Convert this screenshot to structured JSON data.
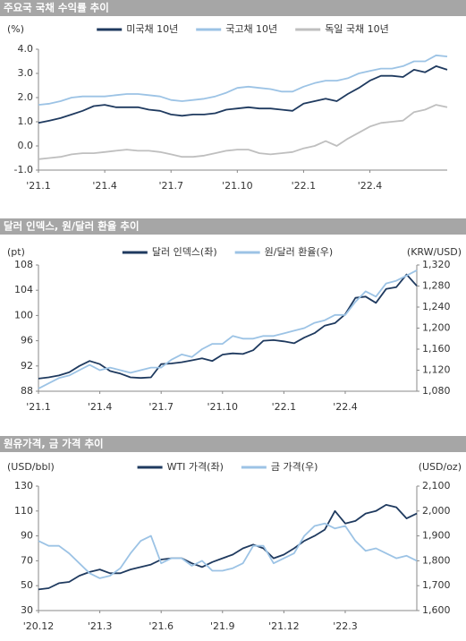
{
  "chart_data": [
    {
      "type": "line",
      "title": "주요국 국채 수익률 추이",
      "y_label": "(%)",
      "categories": [
        "'21.1",
        null,
        null,
        null,
        null,
        null,
        "'21.4",
        null,
        null,
        null,
        null,
        null,
        "'21.7",
        null,
        null,
        null,
        null,
        null,
        "'21.10",
        null,
        null,
        null,
        null,
        null,
        "'22.1",
        null,
        null,
        null,
        null,
        null,
        "'22.4",
        null,
        null,
        null,
        null,
        null,
        null,
        null
      ],
      "ylim": [
        -1,
        4
      ],
      "yticks": [
        {
          "value": -1,
          "label": "-1.0"
        },
        {
          "value": 0,
          "label": "0.0"
        },
        {
          "value": 1,
          "label": "1.0"
        },
        {
          "value": 2,
          "label": "2.0"
        },
        {
          "value": 3,
          "label": "3.0"
        },
        {
          "value": 4,
          "label": "4.0"
        }
      ],
      "series": [
        {
          "name": "미국채 10년",
          "color": "#1f3a5f",
          "values": [
            0.95,
            1.05,
            1.15,
            1.3,
            1.45,
            1.65,
            1.7,
            1.6,
            1.6,
            1.6,
            1.5,
            1.45,
            1.3,
            1.25,
            1.3,
            1.3,
            1.35,
            1.5,
            1.55,
            1.6,
            1.55,
            1.55,
            1.5,
            1.45,
            1.75,
            1.85,
            1.95,
            1.85,
            2.15,
            2.4,
            2.7,
            2.9,
            2.9,
            2.85,
            3.15,
            3.05,
            3.3,
            3.15
          ]
        },
        {
          "name": "국고채 10년",
          "color": "#9cc3e5",
          "values": [
            1.7,
            1.75,
            1.85,
            2.0,
            2.05,
            2.05,
            2.05,
            2.1,
            2.15,
            2.15,
            2.1,
            2.05,
            1.9,
            1.85,
            1.9,
            1.95,
            2.05,
            2.2,
            2.4,
            2.45,
            2.4,
            2.35,
            2.25,
            2.25,
            2.45,
            2.6,
            2.7,
            2.7,
            2.8,
            3.0,
            3.1,
            3.2,
            3.2,
            3.3,
            3.5,
            3.5,
            3.75,
            3.7
          ]
        },
        {
          "name": "독일 국채 10년",
          "color": "#bfbfbf",
          "values": [
            -0.55,
            -0.5,
            -0.45,
            -0.35,
            -0.3,
            -0.3,
            -0.25,
            -0.2,
            -0.15,
            -0.2,
            -0.2,
            -0.25,
            -0.35,
            -0.45,
            -0.45,
            -0.4,
            -0.3,
            -0.2,
            -0.15,
            -0.15,
            -0.3,
            -0.35,
            -0.3,
            -0.25,
            -0.1,
            0.0,
            0.2,
            0.0,
            0.3,
            0.55,
            0.8,
            0.95,
            1.0,
            1.05,
            1.4,
            1.5,
            1.7,
            1.6
          ]
        }
      ]
    },
    {
      "type": "line",
      "title": "달러 인덱스, 원/달러 환율 추이",
      "y_label": "(pt)",
      "y2_label": "(KRW/USD)",
      "categories": [
        "'21.1",
        null,
        null,
        null,
        null,
        null,
        "'21.4",
        null,
        null,
        null,
        null,
        null,
        "'21.7",
        null,
        null,
        null,
        null,
        null,
        "'21.10",
        null,
        null,
        null,
        null,
        null,
        "'22.1",
        null,
        null,
        null,
        null,
        null,
        "'22.4",
        null,
        null,
        null,
        null,
        null,
        null,
        null
      ],
      "ylim": [
        88,
        108
      ],
      "yticks": [
        88,
        92,
        96,
        100,
        104,
        108
      ],
      "y2lim": [
        1080,
        1320
      ],
      "y2ticks": [
        {
          "value": 1080,
          "label": "1,080"
        },
        {
          "value": 1120,
          "label": "1,120"
        },
        {
          "value": 1160,
          "label": "1,160"
        },
        {
          "value": 1200,
          "label": "1,200"
        },
        {
          "value": 1240,
          "label": "1,240"
        },
        {
          "value": 1280,
          "label": "1,280"
        },
        {
          "value": 1320,
          "label": "1,320"
        }
      ],
      "series": [
        {
          "name": "달러 인덱스(좌)",
          "color": "#1f3a5f",
          "values": [
            90,
            90.2,
            90.5,
            91,
            92,
            92.8,
            92.3,
            91.2,
            90.8,
            90.2,
            90.1,
            90.2,
            92.3,
            92.4,
            92.6,
            92.9,
            93.2,
            92.8,
            93.8,
            94.0,
            93.9,
            94.5,
            96.0,
            96.1,
            95.9,
            95.6,
            96.5,
            97.2,
            98.4,
            98.8,
            100.2,
            102.8,
            103.0,
            102.0,
            104.2,
            104.5,
            106.5,
            104.7
          ]
        },
        {
          "name": "원/달러 환율(우)",
          "color": "#9cc3e5",
          "axis": "y2",
          "values": [
            1085,
            1095,
            1105,
            1110,
            1120,
            1130,
            1120,
            1125,
            1120,
            1115,
            1120,
            1125,
            1125,
            1140,
            1150,
            1145,
            1160,
            1170,
            1170,
            1185,
            1180,
            1180,
            1185,
            1185,
            1190,
            1195,
            1200,
            1210,
            1215,
            1225,
            1225,
            1250,
            1270,
            1260,
            1285,
            1290,
            1300,
            1310
          ]
        }
      ]
    },
    {
      "type": "line",
      "title": "원유가격, 금 가격 추이",
      "y_label": "(USD/bbl)",
      "y2_label": "(USD/oz)",
      "categories": [
        "'20.12",
        null,
        null,
        null,
        null,
        null,
        "'21.3",
        null,
        null,
        null,
        null,
        null,
        "'21.6",
        null,
        null,
        null,
        null,
        null,
        "'21.9",
        null,
        null,
        null,
        null,
        null,
        "'21.12",
        null,
        null,
        null,
        null,
        null,
        "'22.3",
        null,
        null,
        null,
        null,
        null,
        null,
        null
      ],
      "ylim": [
        30,
        130
      ],
      "yticks": [
        30,
        50,
        70,
        90,
        110,
        130
      ],
      "y2lim": [
        1600,
        2100
      ],
      "y2ticks": [
        {
          "value": 1600,
          "label": "1,600"
        },
        {
          "value": 1700,
          "label": "1,700"
        },
        {
          "value": 1800,
          "label": "1,800"
        },
        {
          "value": 1900,
          "label": "1,900"
        },
        {
          "value": 2000,
          "label": "2,000"
        },
        {
          "value": 2100,
          "label": "2,100"
        }
      ],
      "series": [
        {
          "name": "WTI 가격(좌)",
          "color": "#1f3a5f",
          "values": [
            47,
            48,
            52,
            53,
            58,
            61,
            63,
            60,
            60,
            63,
            65,
            67,
            71,
            72,
            72,
            68,
            65,
            69,
            72,
            75,
            80,
            83,
            80,
            72,
            75,
            80,
            86,
            90,
            95,
            110,
            100,
            102,
            108,
            110,
            115,
            113,
            104,
            108
          ]
        },
        {
          "name": "금 가격(우)",
          "color": "#9cc3e5",
          "axis": "y2",
          "values": [
            1880,
            1860,
            1860,
            1830,
            1790,
            1750,
            1730,
            1740,
            1770,
            1830,
            1880,
            1900,
            1790,
            1810,
            1810,
            1780,
            1800,
            1760,
            1760,
            1770,
            1790,
            1860,
            1860,
            1790,
            1810,
            1830,
            1900,
            1940,
            1950,
            1930,
            1940,
            1880,
            1840,
            1850,
            1830,
            1810,
            1820,
            1800
          ]
        }
      ]
    }
  ]
}
